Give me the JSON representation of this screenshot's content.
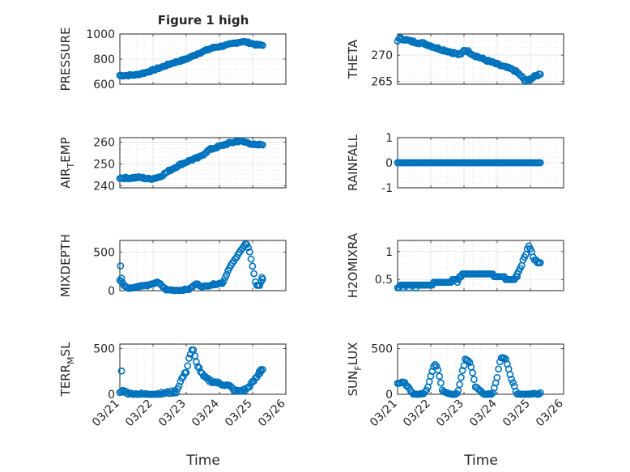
{
  "chart_data": {
    "type": "scatter",
    "title": "Figure 1 high",
    "marker_color": "#0072BD",
    "xlabel": "Time",
    "x_ticks": [
      "03/21",
      "03/22",
      "03/23",
      "03/24",
      "03/25",
      "03/26"
    ],
    "xlim": [
      0,
      5
    ],
    "grid": true,
    "panels": [
      {
        "id": "pressure",
        "ylabel": "PRESSURE",
        "ylim": [
          600,
          1000
        ],
        "yticks": [
          600,
          800,
          1000
        ],
        "anchors": [
          [
            0,
            670
          ],
          [
            0.2,
            670
          ],
          [
            0.5,
            675
          ],
          [
            0.8,
            695
          ],
          [
            1.2,
            730
          ],
          [
            1.6,
            770
          ],
          [
            2.0,
            800
          ],
          [
            2.4,
            850
          ],
          [
            2.8,
            890
          ],
          [
            3.2,
            910
          ],
          [
            3.5,
            930
          ],
          [
            3.7,
            940
          ],
          [
            3.9,
            930
          ],
          [
            4.1,
            915
          ],
          [
            4.3,
            910
          ]
        ],
        "noise": 6,
        "n": 100,
        "dot_every": 0
      },
      {
        "id": "theta",
        "ylabel": "THETA",
        "ylim": [
          264.5,
          274
        ],
        "yticks": [
          265,
          270
        ],
        "anchors": [
          [
            0,
            272.8
          ],
          [
            0.1,
            273.2
          ],
          [
            0.4,
            272.6
          ],
          [
            0.8,
            272.2
          ],
          [
            1.2,
            271.3
          ],
          [
            1.6,
            270.6
          ],
          [
            1.9,
            270.0
          ],
          [
            2.0,
            271.0
          ],
          [
            2.1,
            270.8
          ],
          [
            2.3,
            270.0
          ],
          [
            2.6,
            269.2
          ],
          [
            2.9,
            268.5
          ],
          [
            3.2,
            267.8
          ],
          [
            3.5,
            267.2
          ],
          [
            3.7,
            266.2
          ],
          [
            3.85,
            265.0
          ],
          [
            4.0,
            265.5
          ],
          [
            4.15,
            266.0
          ],
          [
            4.3,
            266.5
          ]
        ],
        "noise": 0.2,
        "n": 100,
        "dot_every": 0
      },
      {
        "id": "air_temp",
        "ylabel_main": "AIR",
        "ylabel_sub": "T",
        "ylabel_rest": "EMP",
        "ylim": [
          239,
          262
        ],
        "yticks": [
          240,
          250,
          260
        ],
        "anchors": [
          [
            0,
            243.5
          ],
          [
            0.3,
            243.5
          ],
          [
            0.6,
            243.8
          ],
          [
            0.9,
            243.0
          ],
          [
            1.2,
            244.0
          ],
          [
            1.5,
            247.0
          ],
          [
            1.8,
            249.5
          ],
          [
            2.1,
            251.5
          ],
          [
            2.4,
            253.0
          ],
          [
            2.7,
            256.5
          ],
          [
            3.0,
            258.0
          ],
          [
            3.3,
            259.5
          ],
          [
            3.6,
            260.5
          ],
          [
            3.9,
            259.5
          ],
          [
            4.1,
            258.5
          ],
          [
            4.3,
            259.0
          ]
        ],
        "noise": 0.4,
        "n": 100,
        "dot_every": 0
      },
      {
        "id": "rainfall",
        "ylabel": "RAINFALL",
        "ylim": [
          -1,
          1
        ],
        "yticks": [
          -1,
          0,
          1
        ],
        "anchors": [
          [
            0,
            0
          ],
          [
            4.3,
            0
          ]
        ],
        "noise": 0,
        "n": 100,
        "dot_every": 0
      },
      {
        "id": "mixdepth",
        "ylabel": "MIXDEPTH",
        "ylim": [
          0,
          650
        ],
        "yticks": [
          0,
          500
        ],
        "anchors": [
          [
            0,
            140
          ],
          [
            0.15,
            60
          ],
          [
            0.3,
            30
          ],
          [
            0.6,
            60
          ],
          [
            0.9,
            70
          ],
          [
            1.1,
            110
          ],
          [
            1.2,
            90
          ],
          [
            1.4,
            10
          ],
          [
            1.8,
            5
          ],
          [
            2.1,
            20
          ],
          [
            2.3,
            90
          ],
          [
            2.5,
            50
          ],
          [
            2.8,
            80
          ],
          [
            3.1,
            100
          ],
          [
            3.3,
            300
          ],
          [
            3.5,
            420
          ],
          [
            3.7,
            560
          ],
          [
            3.8,
            620
          ],
          [
            3.9,
            520
          ],
          [
            4.0,
            300
          ],
          [
            4.1,
            80
          ],
          [
            4.2,
            60
          ],
          [
            4.3,
            150
          ]
        ],
        "extra": [
          [
            0.02,
            320
          ],
          [
            0.05,
            160
          ],
          [
            4.28,
            170
          ]
        ],
        "noise": 8,
        "n": 100,
        "dot_every": 0
      },
      {
        "id": "h2omixra",
        "ylabel": "H2OMIXRA",
        "ylim": [
          0.3,
          1.2
        ],
        "yticks": [
          0.5,
          1
        ],
        "anchors": [
          [
            0,
            0.35
          ],
          [
            0.1,
            0.4
          ],
          [
            0.3,
            0.4
          ],
          [
            1.0,
            0.42
          ],
          [
            1.5,
            0.45
          ],
          [
            1.8,
            0.5
          ],
          [
            2.0,
            0.6
          ],
          [
            2.8,
            0.6
          ],
          [
            3.0,
            0.55
          ],
          [
            3.5,
            0.5
          ],
          [
            3.7,
            0.7
          ],
          [
            3.85,
            0.95
          ],
          [
            3.95,
            1.1
          ],
          [
            4.1,
            0.9
          ],
          [
            4.2,
            0.8
          ],
          [
            4.3,
            0.8
          ]
        ],
        "extra": [
          [
            0.15,
            0.35
          ],
          [
            0.35,
            0.35
          ],
          [
            0.55,
            0.35
          ],
          [
            1.8,
            0.45
          ],
          [
            3.6,
            0.55
          ]
        ],
        "noise": 0,
        "n": 100,
        "dot_every": 0,
        "quantize": 0.05
      },
      {
        "id": "terr_msl",
        "ylabel_main": "TERR",
        "ylabel_sub": "M",
        "ylabel_rest": "SL",
        "ylim": [
          0,
          550
        ],
        "yticks": [
          0,
          500
        ],
        "anchors": [
          [
            0,
            20
          ],
          [
            0.1,
            40
          ],
          [
            0.3,
            5
          ],
          [
            0.8,
            0
          ],
          [
            1.2,
            5
          ],
          [
            1.5,
            20
          ],
          [
            1.7,
            30
          ],
          [
            1.85,
            160
          ],
          [
            2.0,
            250
          ],
          [
            2.1,
            420
          ],
          [
            2.2,
            500
          ],
          [
            2.3,
            350
          ],
          [
            2.5,
            200
          ],
          [
            2.7,
            150
          ],
          [
            3.0,
            120
          ],
          [
            3.3,
            90
          ],
          [
            3.5,
            30
          ],
          [
            3.8,
            50
          ],
          [
            4.0,
            130
          ],
          [
            4.15,
            200
          ],
          [
            4.3,
            280
          ]
        ],
        "extra": [
          [
            0.05,
            255
          ],
          [
            4.2,
            250
          ],
          [
            4.25,
            270
          ]
        ],
        "noise": 15,
        "n": 100,
        "dot_every": 0
      },
      {
        "id": "sun_flux",
        "ylabel_main": "SUN",
        "ylabel_sub": "F",
        "ylabel_rest": "LUX",
        "ylim": [
          0,
          550
        ],
        "yticks": [
          0,
          500
        ],
        "anchors": [
          [
            0,
            120
          ],
          [
            0.2,
            130
          ],
          [
            0.35,
            60
          ],
          [
            0.5,
            0
          ],
          [
            0.75,
            0
          ],
          [
            0.9,
            60
          ],
          [
            1.0,
            200
          ],
          [
            1.1,
            330
          ],
          [
            1.2,
            300
          ],
          [
            1.35,
            40
          ],
          [
            1.6,
            0
          ],
          [
            1.8,
            0
          ],
          [
            1.95,
            250
          ],
          [
            2.05,
            390
          ],
          [
            2.2,
            330
          ],
          [
            2.35,
            80
          ],
          [
            2.6,
            0
          ],
          [
            2.85,
            0
          ],
          [
            3.0,
            180
          ],
          [
            3.1,
            400
          ],
          [
            3.25,
            400
          ],
          [
            3.4,
            200
          ],
          [
            3.6,
            0
          ],
          [
            4.0,
            0
          ],
          [
            4.3,
            10
          ]
        ],
        "noise": 8,
        "n": 100,
        "dot_every": 0
      }
    ]
  }
}
